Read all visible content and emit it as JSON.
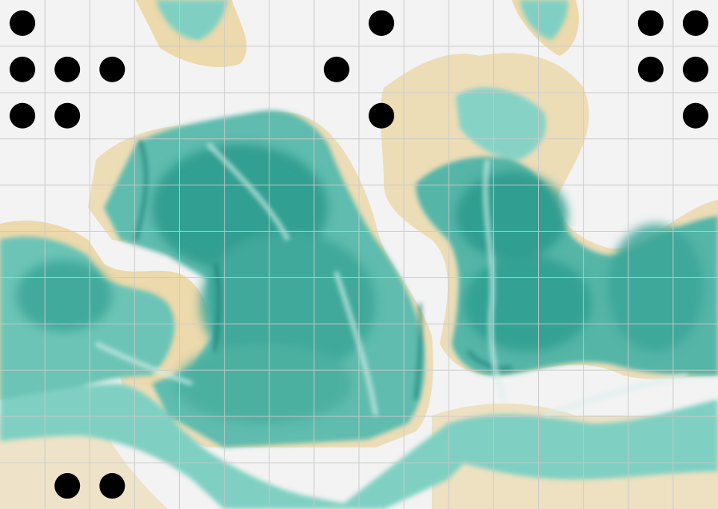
{
  "map": {
    "grid": {
      "cols": 16,
      "rows": 11
    },
    "colors": {
      "land_background": "#f3f3f3",
      "coast_shallow": "#ebd7a8",
      "ocean_light": "#bfe6e0",
      "ocean_mid": "#6cc4b6",
      "ocean_deep": "#2a9a8c",
      "ocean_trench": "#137a70",
      "gridline": "#c9c9c9",
      "marker": "#000000"
    },
    "markers": [
      {
        "col": 0,
        "row": 0
      },
      {
        "col": 8,
        "row": 0
      },
      {
        "col": 14,
        "row": 0
      },
      {
        "col": 15,
        "row": 0
      },
      {
        "col": 0,
        "row": 1
      },
      {
        "col": 1,
        "row": 1
      },
      {
        "col": 2,
        "row": 1
      },
      {
        "col": 7,
        "row": 1
      },
      {
        "col": 14,
        "row": 1
      },
      {
        "col": 15,
        "row": 1
      },
      {
        "col": 0,
        "row": 2
      },
      {
        "col": 1,
        "row": 2
      },
      {
        "col": 8,
        "row": 2
      },
      {
        "col": 15,
        "row": 2
      },
      {
        "col": 1,
        "row": 10
      },
      {
        "col": 2,
        "row": 10
      }
    ]
  }
}
